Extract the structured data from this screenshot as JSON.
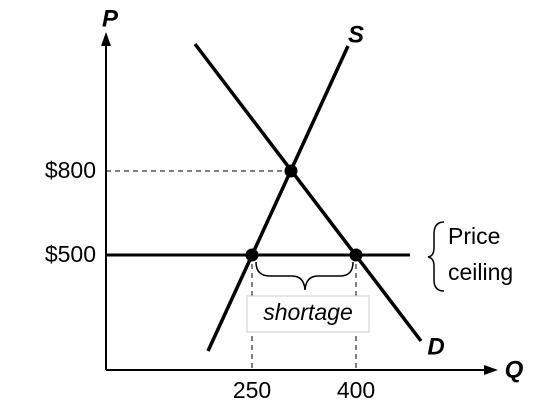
{
  "axes": {
    "y_label": "P",
    "x_label": "Q",
    "y_ticks": [
      "$800",
      "$500"
    ],
    "x_ticks": [
      "250",
      "400"
    ]
  },
  "curves": {
    "supply": "S",
    "demand": "D"
  },
  "annotations": {
    "ceiling": [
      "Price",
      "ceiling"
    ],
    "gap": "shortage"
  }
}
